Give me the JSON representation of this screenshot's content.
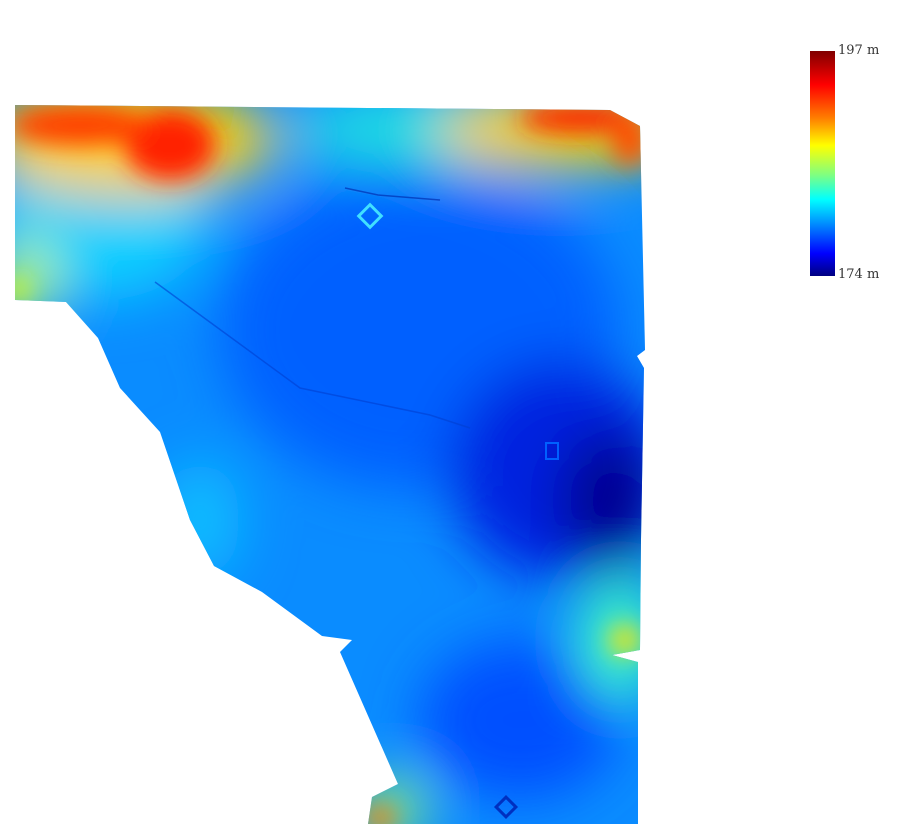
{
  "colorbar": {
    "max_label": "197 m",
    "min_label": "174 m",
    "max_value": 197,
    "min_value": 174,
    "unit": "m",
    "colormap": "jet",
    "colors": [
      "#800000",
      "#ff0000",
      "#ff8000",
      "#ffff00",
      "#80ff80",
      "#00ffff",
      "#0080ff",
      "#0000ff",
      "#000080"
    ]
  }
}
